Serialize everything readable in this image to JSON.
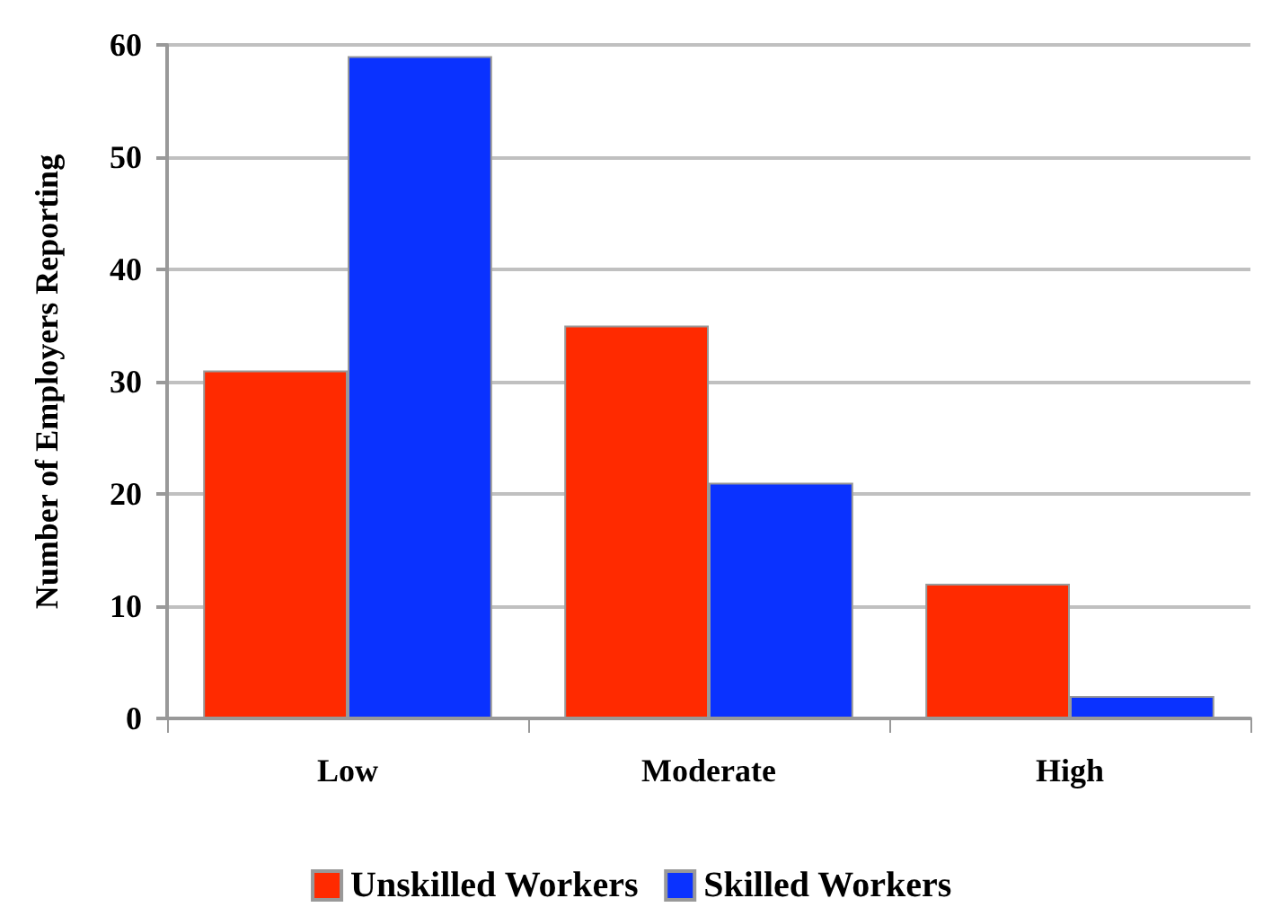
{
  "chart_data": {
    "type": "bar",
    "ylabel": "Number of Employers Reporting",
    "categories": [
      "Low",
      "Moderate",
      "High"
    ],
    "series": [
      {
        "name": "Unskilled Workers",
        "color": "#ff2a00",
        "values": [
          31,
          35,
          12
        ]
      },
      {
        "name": "Skilled Workers",
        "color": "#0a32ff",
        "values": [
          59,
          21,
          2
        ]
      }
    ],
    "ylim": [
      0,
      60
    ],
    "yticks": [
      0,
      10,
      20,
      30,
      40,
      50,
      60
    ],
    "grid": "y",
    "legend": "bottom"
  }
}
